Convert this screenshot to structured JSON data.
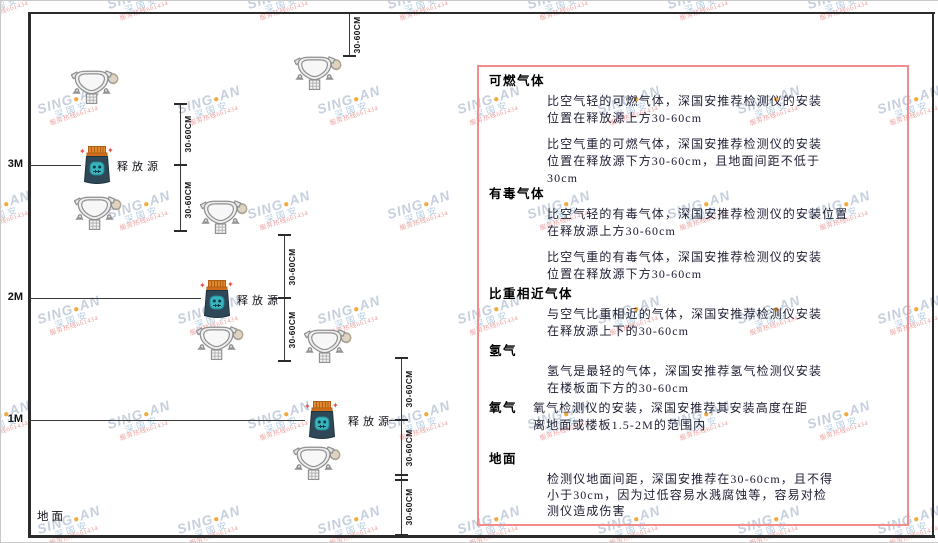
{
  "diagram": {
    "levels": [
      {
        "label": "3M"
      },
      {
        "label": "2M"
      },
      {
        "label": "1M"
      }
    ],
    "ground_label": "地面",
    "release_source_label": "释放源",
    "dimension_label": "30-60CM"
  },
  "panel": {
    "sections": [
      {
        "id": "flammable",
        "heading": "可燃气体",
        "paragraphs": [
          [
            "比空气轻的可燃气体，深国安推荐检测仪的安装",
            "位置在释放源上方30-60cm"
          ],
          [
            "比空气重的可燃气体，深国安推荐检测仪的安装",
            "位置在释放源下方30-60cm，且地面间距不低于",
            "30cm"
          ]
        ]
      },
      {
        "id": "toxic",
        "heading": "有毒气体",
        "paragraphs": [
          [
            "比空气轻的有毒气体，深国安推荐检测仪的安装位置",
            "在释放源上方30-60cm"
          ],
          [
            "比空气重的有毒气体，深国安推荐检测仪的安装",
            "位置在释放源下方30-60cm"
          ]
        ]
      },
      {
        "id": "similar",
        "heading": "比重相近气体",
        "paragraphs": [
          [
            "与空气比重相近的气体，深国安推荐检测仪安装",
            "在释放源上下的30-60cm"
          ]
        ]
      },
      {
        "id": "hydrogen",
        "heading": "氢气",
        "paragraphs": [
          [
            "氢气是最轻的气体，深国安推荐氢气检测仪安装",
            "在楼板面下方的30-60cm"
          ]
        ]
      },
      {
        "id": "oxygen",
        "heading": "氧气",
        "paragraphs": [
          [
            "氧气检测仪的安装，深国安推荐其安装高度在距",
            "离地面或楼板1.5-2M的范围内"
          ]
        ]
      },
      {
        "id": "ground",
        "heading": "地面",
        "paragraphs": [
          [
            "检测仪地面间距，深国安推荐在30-60cm，且不得",
            "小于30cm，因为过低容易水溅腐蚀等，容易对检",
            "测仪造成伤害"
          ]
        ]
      }
    ]
  },
  "watermark": {
    "brand_left": "SING",
    "brand_right": "AN",
    "cn": "深国安",
    "hotline": "服务热线661434"
  },
  "colors": {
    "panel_border": "#f28b8b",
    "line": "#2b2b2b",
    "source_body": "#2e4858",
    "source_lid": "#e2882f",
    "source_emblem": "#37b6c0",
    "watermark_blue": "#c6cfde",
    "watermark_dot": "#f3a93c",
    "watermark_red": "#eb9f9f"
  }
}
